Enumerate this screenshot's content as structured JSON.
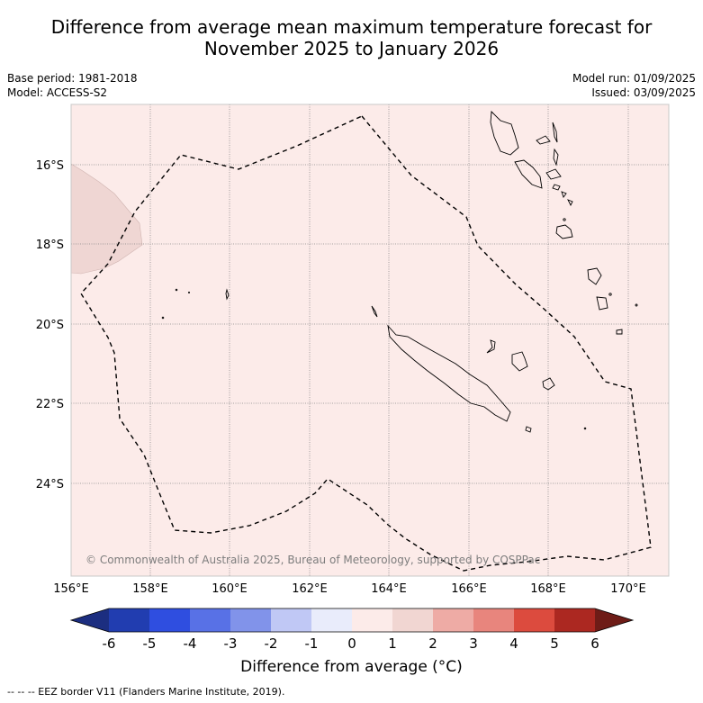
{
  "title": {
    "line1": "Difference from average mean maximum temperature forecast for",
    "line2": "November 2025 to January 2026"
  },
  "meta": {
    "base_period": "Base period: 1981-2018",
    "model": "Model: ACCESS-S2",
    "model_run": "Model run: 01/09/2025",
    "issued": "Issued: 03/09/2025"
  },
  "map": {
    "background_color": "#fcebe9",
    "anomaly_patch_color": "#efd6d3",
    "copyright": "© Commonwealth of Australia 2025, Bureau of Meteorology, supported by COSPPac",
    "lat_labels": [
      "16°S",
      "18°S",
      "20°S",
      "22°S",
      "24°S"
    ],
    "lon_labels": [
      "156°E",
      "158°E",
      "160°E",
      "162°E",
      "164°E",
      "166°E",
      "168°E",
      "170°E"
    ]
  },
  "colorbar": {
    "tick_labels": [
      "-6",
      "-5",
      "-4",
      "-3",
      "-2",
      "-1",
      "0",
      "1",
      "2",
      "3",
      "4",
      "5",
      "6"
    ],
    "colors": [
      "#1c2e80",
      "#213db0",
      "#2f4ee0",
      "#5871e6",
      "#8193ea",
      "#c0c8f5",
      "#e9ecfb",
      "#fcebe9",
      "#f1d6d2",
      "#eeaba5",
      "#e8857d",
      "#dc4b3e",
      "#ac2821",
      "#6e1c17"
    ],
    "label": "Difference from average (°C)"
  },
  "footnote": "--  --  -- EEZ border V11 (Flanders Marine Institute, 2019)."
}
